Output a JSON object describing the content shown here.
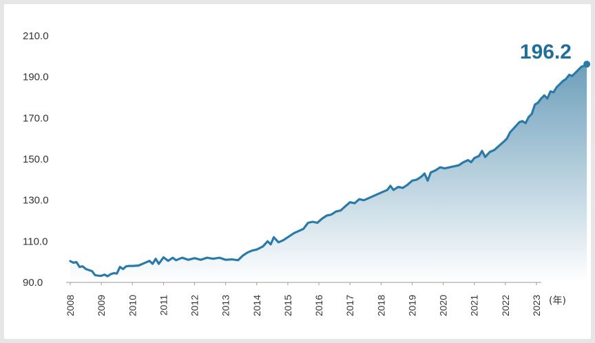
{
  "chart_data": {
    "type": "area",
    "title": "",
    "xlabel": "",
    "ylabel": "",
    "unit_label": "(年)",
    "last_value_label": "196.2",
    "ylim": [
      90,
      210
    ],
    "yticks": [
      "90.0",
      "110.0",
      "130.0",
      "150.0",
      "170.0",
      "190.0",
      "210.0"
    ],
    "xticks": [
      "2008",
      "2009",
      "2010",
      "2011",
      "2012",
      "2013",
      "2014",
      "2015",
      "2016",
      "2017",
      "2018",
      "2019",
      "2020",
      "2021",
      "2022",
      "2023"
    ],
    "colors": {
      "line": "#2a7aa8",
      "fill_top": "#6d9fbb",
      "fill_bottom": "#ffffff",
      "label": "#1f6f9a"
    },
    "series": [
      {
        "points": [
          [
            2008.0,
            100.4
          ],
          [
            2008.1,
            99.6
          ],
          [
            2008.2,
            99.9
          ],
          [
            2008.3,
            97.5
          ],
          [
            2008.4,
            97.8
          ],
          [
            2008.5,
            96.5
          ],
          [
            2008.6,
            96.0
          ],
          [
            2008.7,
            95.5
          ],
          [
            2008.8,
            93.5
          ],
          [
            2008.9,
            93.3
          ],
          [
            2009.0,
            93.2
          ],
          [
            2009.1,
            93.8
          ],
          [
            2009.2,
            93.0
          ],
          [
            2009.3,
            94.0
          ],
          [
            2009.4,
            94.5
          ],
          [
            2009.5,
            94.3
          ],
          [
            2009.6,
            97.5
          ],
          [
            2009.7,
            96.5
          ],
          [
            2009.8,
            97.8
          ],
          [
            2009.9,
            98.0
          ],
          [
            2010.0,
            98.0
          ],
          [
            2010.2,
            98.2
          ],
          [
            2010.4,
            99.5
          ],
          [
            2010.55,
            100.5
          ],
          [
            2010.65,
            99.0
          ],
          [
            2010.75,
            101.5
          ],
          [
            2010.85,
            99.0
          ],
          [
            2011.0,
            102.2
          ],
          [
            2011.15,
            100.5
          ],
          [
            2011.3,
            102.0
          ],
          [
            2011.4,
            100.8
          ],
          [
            2011.6,
            102.0
          ],
          [
            2011.8,
            101.0
          ],
          [
            2012.0,
            101.8
          ],
          [
            2012.2,
            101.0
          ],
          [
            2012.4,
            102.0
          ],
          [
            2012.6,
            101.5
          ],
          [
            2012.8,
            102.0
          ],
          [
            2013.0,
            101.0
          ],
          [
            2013.2,
            101.2
          ],
          [
            2013.4,
            100.8
          ],
          [
            2013.55,
            103.0
          ],
          [
            2013.7,
            104.5
          ],
          [
            2013.85,
            105.5
          ],
          [
            2014.0,
            106.0
          ],
          [
            2014.2,
            107.5
          ],
          [
            2014.35,
            110.0
          ],
          [
            2014.45,
            108.5
          ],
          [
            2014.55,
            112.0
          ],
          [
            2014.7,
            109.5
          ],
          [
            2014.85,
            110.5
          ],
          [
            2015.0,
            112.0
          ],
          [
            2015.2,
            114.0
          ],
          [
            2015.35,
            115.0
          ],
          [
            2015.5,
            116.0
          ],
          [
            2015.65,
            119.0
          ],
          [
            2015.8,
            119.5
          ],
          [
            2015.95,
            119.0
          ],
          [
            2016.1,
            121.0
          ],
          [
            2016.25,
            122.5
          ],
          [
            2016.4,
            123.0
          ],
          [
            2016.55,
            124.5
          ],
          [
            2016.7,
            125.0
          ],
          [
            2016.85,
            127.0
          ],
          [
            2017.0,
            129.0
          ],
          [
            2017.15,
            128.5
          ],
          [
            2017.3,
            130.5
          ],
          [
            2017.45,
            130.0
          ],
          [
            2017.6,
            131.0
          ],
          [
            2017.75,
            132.0
          ],
          [
            2017.9,
            133.0
          ],
          [
            2018.05,
            134.0
          ],
          [
            2018.2,
            135.0
          ],
          [
            2018.3,
            137.0
          ],
          [
            2018.4,
            135.0
          ],
          [
            2018.55,
            136.5
          ],
          [
            2018.7,
            136.0
          ],
          [
            2018.85,
            137.5
          ],
          [
            2019.0,
            139.5
          ],
          [
            2019.15,
            140.0
          ],
          [
            2019.3,
            141.5
          ],
          [
            2019.4,
            143.0
          ],
          [
            2019.5,
            139.5
          ],
          [
            2019.6,
            143.5
          ],
          [
            2019.75,
            144.5
          ],
          [
            2019.9,
            146.0
          ],
          [
            2020.05,
            145.5
          ],
          [
            2020.2,
            146.0
          ],
          [
            2020.35,
            146.5
          ],
          [
            2020.5,
            147.0
          ],
          [
            2020.65,
            148.5
          ],
          [
            2020.8,
            149.5
          ],
          [
            2020.9,
            148.5
          ],
          [
            2021.0,
            150.5
          ],
          [
            2021.15,
            151.5
          ],
          [
            2021.25,
            154.0
          ],
          [
            2021.35,
            151.0
          ],
          [
            2021.5,
            153.5
          ],
          [
            2021.65,
            154.5
          ],
          [
            2021.8,
            156.5
          ],
          [
            2021.95,
            158.5
          ],
          [
            2022.05,
            160.0
          ],
          [
            2022.15,
            163.0
          ],
          [
            2022.3,
            165.5
          ],
          [
            2022.45,
            168.0
          ],
          [
            2022.55,
            168.5
          ],
          [
            2022.65,
            167.5
          ],
          [
            2022.75,
            170.5
          ],
          [
            2022.85,
            172.0
          ],
          [
            2022.95,
            176.5
          ],
          [
            2023.05,
            177.5
          ],
          [
            2023.15,
            179.5
          ],
          [
            2023.25,
            181.0
          ],
          [
            2023.35,
            179.5
          ],
          [
            2023.45,
            183.0
          ],
          [
            2023.55,
            182.5
          ],
          [
            2023.65,
            185.0
          ],
          [
            2023.75,
            186.5
          ],
          [
            2023.85,
            188.0
          ],
          [
            2023.95,
            189.0
          ],
          [
            2024.05,
            191.0
          ],
          [
            2024.15,
            190.5
          ],
          [
            2024.25,
            192.0
          ],
          [
            2024.35,
            193.5
          ],
          [
            2024.45,
            195.0
          ],
          [
            2024.55,
            195.5
          ],
          [
            2024.62,
            196.2
          ]
        ]
      }
    ]
  }
}
